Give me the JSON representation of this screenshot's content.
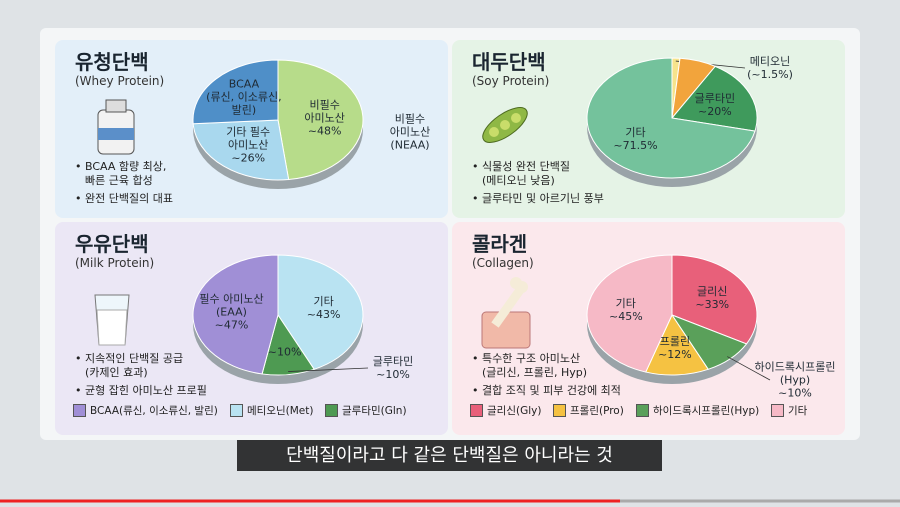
{
  "chart_data": [
    {
      "type": "pie",
      "title": "유청단백",
      "subtitle": "(Whey Protein)",
      "categories": [
        "비필수\n아미노산",
        "기타 필수\n아미노산",
        "BCAA\n(류신, 이소류신,\n발린)"
      ],
      "values": [
        48,
        26,
        26
      ],
      "value_labels": [
        "~48%",
        "~26%",
        null
      ],
      "colors": [
        "#b7dc8a",
        "#a9d8ee",
        "#4f8fc8"
      ],
      "annotations": [
        "비필수\n아미노산\n(NEAA)"
      ],
      "bullets": [
        "BCAA 함량 최상,\n빠른 근육 합성",
        "완전 단백질의 대표"
      ]
    },
    {
      "type": "pie",
      "title": "대두단백",
      "subtitle": "(Soy Protein)",
      "categories": [
        "메티오닌",
        null,
        "글루타민",
        "기타"
      ],
      "values": [
        1.5,
        7,
        20,
        71.5
      ],
      "value_labels": [
        "(~1.5%)",
        null,
        "~20%",
        "~71.5%"
      ],
      "colors": [
        "#f6e38c",
        "#f2a43c",
        "#3f9a5c",
        "#74c29c"
      ],
      "bullets": [
        "식물성 완전 단백질\n(메티오닌 낮음)",
        "글루타민 및 아르기닌 풍부"
      ]
    },
    {
      "type": "pie",
      "title": "우유단백",
      "subtitle": "(Milk Protein)",
      "categories": [
        "기타",
        "글루타민",
        "필수 아미노산\n(EAA)"
      ],
      "values": [
        43,
        10,
        47
      ],
      "value_labels": [
        "~43%",
        "~10%",
        "~47%"
      ],
      "colors": [
        "#b9e3f2",
        "#4e9a52",
        "#a08fd6"
      ],
      "bullets": [
        "지속적인 단백질 공급\n(카제인 효과)",
        "균형 잡힌 아미노산 프로필"
      ],
      "legend": [
        {
          "name": "BCAA(류신, 이소류신, 발린)",
          "color": "#a08fd6"
        },
        {
          "name": "메티오닌(Met)",
          "color": "#b9e3f2"
        },
        {
          "name": "글루타민(Gln)",
          "color": "#4e9a52"
        }
      ]
    },
    {
      "type": "pie",
      "title": "콜라겐",
      "subtitle": "(Collagen)",
      "categories": [
        "글리신",
        "하이드록시프롤린\n(Hyp)",
        "프롤린",
        "기타"
      ],
      "values": [
        33,
        10,
        12,
        45
      ],
      "value_labels": [
        "~33%",
        "~10%",
        "~12%",
        "~45%"
      ],
      "colors": [
        "#e8607a",
        "#5aa05a",
        "#f5c242",
        "#f6b9c6"
      ],
      "bullets": [
        "특수한 구조 아미노산\n(글리신, 프롤린, Hyp)",
        "결합 조직 및 피부 건강에 최적"
      ],
      "legend": [
        {
          "name": "글리신(Gly)",
          "color": "#e8607a"
        },
        {
          "name": "프롤린(Pro)",
          "color": "#f5c242"
        },
        {
          "name": "하이드록시프롤린(Hyp)",
          "color": "#5aa05a"
        },
        {
          "name": "기타",
          "color": "#f6b9c6"
        }
      ]
    }
  ],
  "caption": "단백질이라고 다 같은 단백질은 아니라는 것"
}
